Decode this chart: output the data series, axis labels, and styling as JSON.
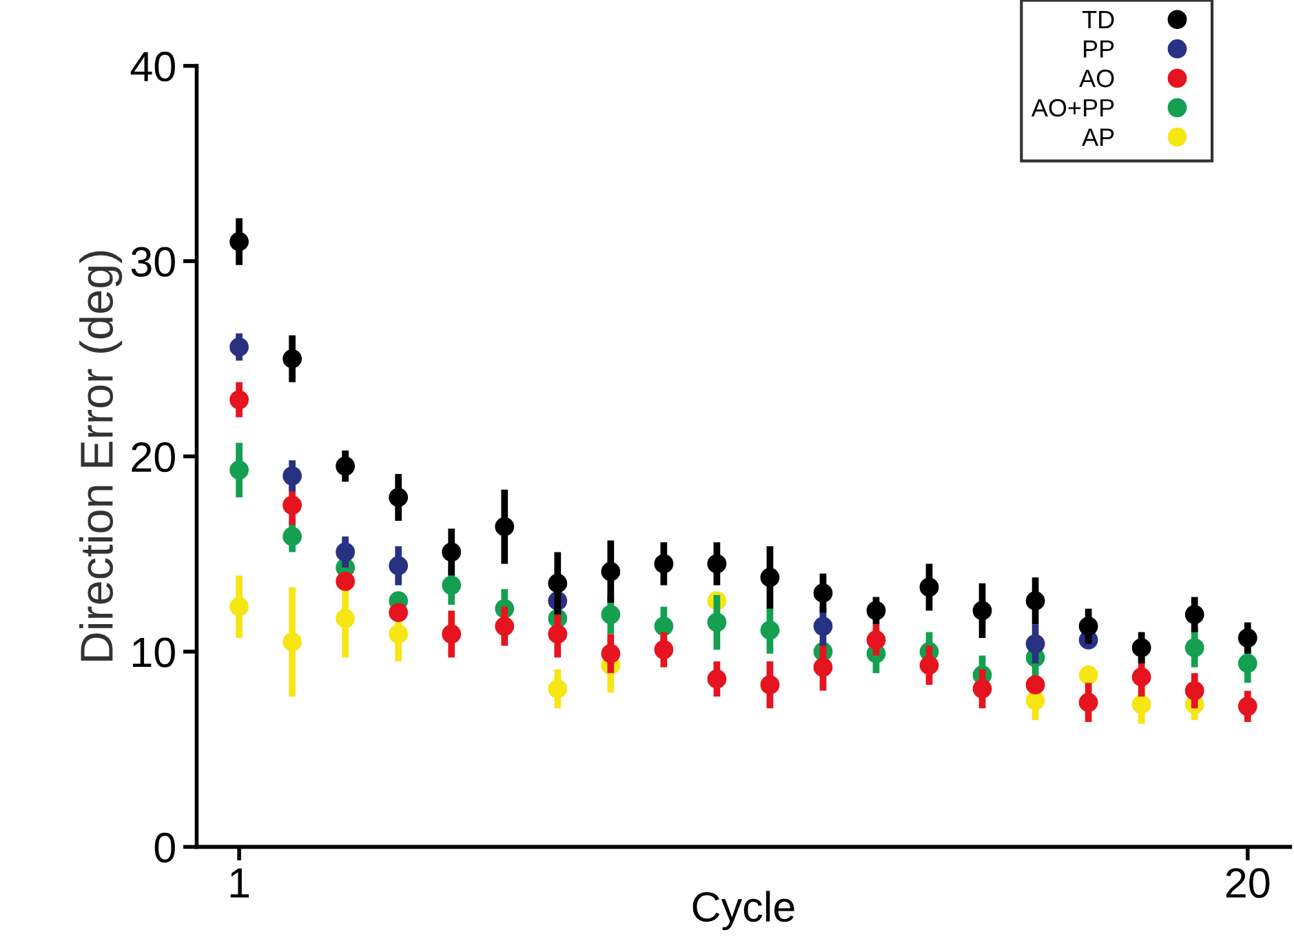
{
  "chart_data": {
    "type": "scatter",
    "xlabel": "Cycle",
    "ylabel": "Direction Error (deg)",
    "x": [
      1,
      2,
      3,
      4,
      5,
      6,
      7,
      8,
      9,
      10,
      11,
      12,
      13,
      14,
      15,
      16,
      17,
      18,
      19,
      20
    ],
    "xlim": [
      0.2,
      20.8
    ],
    "xticks": [
      1,
      20
    ],
    "ylim": [
      0,
      40
    ],
    "yticks": [
      0,
      10,
      20,
      30,
      40
    ],
    "grid": false,
    "legend": "top right",
    "marker": "circle",
    "series": [
      {
        "name": "TD",
        "color": "#000000",
        "values": [
          31.0,
          25.0,
          19.5,
          17.9,
          15.1,
          16.4,
          13.5,
          14.1,
          14.5,
          14.5,
          13.8,
          13.0,
          12.1,
          13.3,
          12.1,
          12.6,
          11.3,
          10.2,
          11.9,
          10.7
        ],
        "errors": [
          1.2,
          1.2,
          0.8,
          1.2,
          1.2,
          1.9,
          1.6,
          1.6,
          1.1,
          1.1,
          1.6,
          1.0,
          0.7,
          1.2,
          1.4,
          1.2,
          0.9,
          0.8,
          0.9,
          0.8
        ]
      },
      {
        "name": "PP",
        "color": "#283282",
        "values": [
          25.6,
          19.0,
          15.1,
          14.4,
          null,
          null,
          12.6,
          null,
          null,
          null,
          null,
          11.3,
          null,
          null,
          null,
          10.4,
          10.6,
          null,
          null,
          null
        ],
        "errors": [
          0.7,
          0.8,
          0.8,
          1.0,
          null,
          null,
          null,
          null,
          null,
          null,
          null,
          1.0,
          null,
          null,
          null,
          1.0,
          null,
          null,
          null,
          null
        ]
      },
      {
        "name": "AO",
        "color": "#e6141e",
        "values": [
          22.9,
          17.5,
          13.6,
          12.0,
          10.9,
          11.3,
          10.9,
          9.9,
          10.1,
          8.6,
          8.3,
          9.2,
          10.6,
          9.3,
          8.1,
          8.3,
          7.4,
          8.7,
          8.0,
          7.2
        ],
        "errors": [
          0.9,
          1.0,
          null,
          null,
          1.2,
          1.0,
          1.2,
          1.0,
          0.9,
          0.9,
          1.2,
          1.2,
          0.8,
          1.0,
          1.0,
          null,
          1.0,
          1.0,
          0.9,
          0.8
        ]
      },
      {
        "name": "AO+PP",
        "color": "#14a050",
        "values": [
          19.3,
          15.9,
          14.3,
          12.6,
          13.4,
          12.2,
          11.7,
          11.9,
          11.3,
          11.5,
          11.1,
          10.0,
          9.9,
          10.0,
          8.8,
          9.7,
          null,
          null,
          10.2,
          9.4
        ],
        "errors": [
          1.4,
          0.8,
          null,
          null,
          1.0,
          1.0,
          null,
          1.0,
          1.0,
          1.4,
          1.2,
          null,
          1.0,
          1.0,
          1.0,
          1.0,
          null,
          null,
          1.0,
          1.0
        ]
      },
      {
        "name": "AP",
        "color": "#f5e614",
        "values": [
          12.3,
          10.5,
          11.7,
          10.9,
          null,
          null,
          8.1,
          9.3,
          null,
          12.6,
          null,
          null,
          null,
          null,
          null,
          7.5,
          8.8,
          7.3,
          7.3,
          null
        ],
        "errors": [
          1.6,
          2.8,
          2.0,
          1.4,
          null,
          null,
          1.0,
          1.4,
          null,
          null,
          null,
          null,
          null,
          null,
          null,
          1.0,
          null,
          1.0,
          0.8,
          null
        ]
      }
    ]
  }
}
